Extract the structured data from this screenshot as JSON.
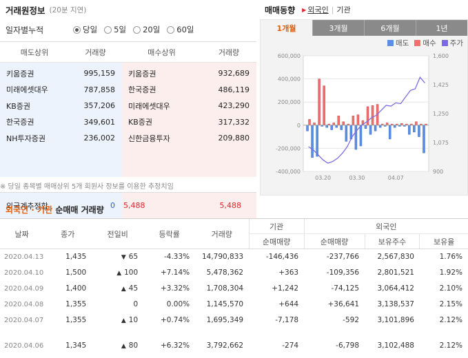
{
  "broker": {
    "title": "거래원정보",
    "delay": "(20분 지연)",
    "filter_label": "일자별누적",
    "options": [
      "당일",
      "5일",
      "20일",
      "60일"
    ],
    "selected": "당일",
    "headers": [
      "매도상위",
      "거래량",
      "매수상위",
      "거래량"
    ],
    "sell": [
      {
        "name": "키움증권",
        "vol": "995,159"
      },
      {
        "name": "미래에셋대우",
        "vol": "787,858"
      },
      {
        "name": "KB증권",
        "vol": "357,206"
      },
      {
        "name": "한국증권",
        "vol": "349,601"
      },
      {
        "name": "NH투자증권",
        "vol": "236,002"
      }
    ],
    "buy": [
      {
        "name": "키움증권",
        "vol": "932,689"
      },
      {
        "name": "한국증권",
        "vol": "486,119"
      },
      {
        "name": "미래에셋대우",
        "vol": "423,290"
      },
      {
        "name": "KB증권",
        "vol": "317,332"
      },
      {
        "name": "신한금융투자",
        "vol": "209,880"
      }
    ],
    "foreign_label": "외국계추정합",
    "foreign_sell": "0",
    "foreign_buy": "5,488",
    "foreign_buy_total": "5,488",
    "note": "※ 당일 종목별 매매상위 5개 회원사 정보를 이용한 추정치임"
  },
  "trend": {
    "title": "매매동향",
    "links": [
      "외국인",
      "기관"
    ],
    "active_link": "외국인",
    "tabs": [
      "1개월",
      "3개월",
      "6개월",
      "1년"
    ],
    "active_tab": "1개월",
    "legend": [
      {
        "label": "매도",
        "color": "#5b8fe6"
      },
      {
        "label": "매수",
        "color": "#f07070"
      },
      {
        "label": "주가",
        "color": "#7b6be0"
      }
    ]
  },
  "chart_data": {
    "type": "bar",
    "y_left_ticks": [
      "600,000",
      "400,000",
      "200,000",
      "0",
      "-200,000",
      "-400,000"
    ],
    "y_right_ticks": [
      "1,600",
      "1,425",
      "1,250",
      "1,075",
      "900"
    ],
    "x_ticks": [
      "03.20",
      "03.30",
      "04.07"
    ],
    "ylim": [
      -400000,
      600000
    ],
    "y2lim": [
      900,
      1600
    ],
    "sell": [
      -50000,
      -280000,
      -270000,
      -10000,
      -20000,
      -40000,
      -20000,
      -40000,
      -140000,
      -120000,
      -210000,
      -180000,
      -30000,
      -80000,
      -50000,
      -20000,
      -10000,
      -120000,
      -20000,
      -10000,
      -10000,
      -80000,
      -60000,
      -100000,
      -240000
    ],
    "buy": [
      50000,
      20000,
      400000,
      340000,
      10000,
      20000,
      80000,
      30000,
      10000,
      80000,
      90000,
      40000,
      160000,
      170000,
      180000,
      10000,
      20000,
      10000,
      10000,
      15000,
      10000,
      10000,
      30000,
      10000,
      10000
    ],
    "price": [
      1050,
      1030,
      1000,
      970,
      950,
      960,
      980,
      1010,
      1050,
      1110,
      1150,
      1180,
      1200,
      1225,
      1240,
      1270,
      1300,
      1295,
      1315,
      1310,
      1350,
      1390,
      1400,
      1470,
      1435
    ]
  },
  "table": {
    "title_orange": "외국인 · 기관",
    "title_black": "순매매 거래량",
    "headers": {
      "date": "날짜",
      "close": "종가",
      "change": "전일비",
      "rate": "등락률",
      "volume": "거래량",
      "inst": "기관",
      "foreign": "외국인",
      "inst_net": "순매매량",
      "for_net": "순매매량",
      "for_hold": "보유주수",
      "for_ratio": "보유율"
    },
    "rows": [
      {
        "date": "2020.04.13",
        "close": "1,435",
        "dir": "down",
        "change": "65",
        "rate": "-4.33%",
        "volume": "14,790,833",
        "inst_net": "-146,436",
        "for_net": "-237,766",
        "hold": "2,567,830",
        "ratio": "1.76%"
      },
      {
        "date": "2020.04.10",
        "close": "1,500",
        "dir": "up",
        "change": "100",
        "rate": "+7.14%",
        "volume": "5,478,362",
        "inst_net": "+363",
        "for_net": "-109,356",
        "hold": "2,801,521",
        "ratio": "1.92%"
      },
      {
        "date": "2020.04.09",
        "close": "1,400",
        "dir": "up",
        "change": "45",
        "rate": "+3.32%",
        "volume": "1,708,304",
        "inst_net": "+1,242",
        "for_net": "-74,125",
        "hold": "3,064,412",
        "ratio": "2.10%"
      },
      {
        "date": "2020.04.08",
        "close": "1,355",
        "dir": "none",
        "change": "0",
        "rate": "0.00%",
        "volume": "1,145,570",
        "inst_net": "+644",
        "for_net": "+36,641",
        "hold": "3,138,537",
        "ratio": "2.15%"
      },
      {
        "date": "2020.04.07",
        "close": "1,355",
        "dir": "up",
        "change": "10",
        "rate": "+0.74%",
        "volume": "1,695,349",
        "inst_net": "-7,178",
        "for_net": "-592",
        "hold": "3,101,896",
        "ratio": "2.12%"
      },
      {
        "date": "2020.04.06",
        "close": "1,345",
        "dir": "up",
        "change": "80",
        "rate": "+6.32%",
        "volume": "3,792,662",
        "inst_net": "-274",
        "for_net": "-6,798",
        "hold": "3,102,488",
        "ratio": "2.12%"
      }
    ]
  }
}
